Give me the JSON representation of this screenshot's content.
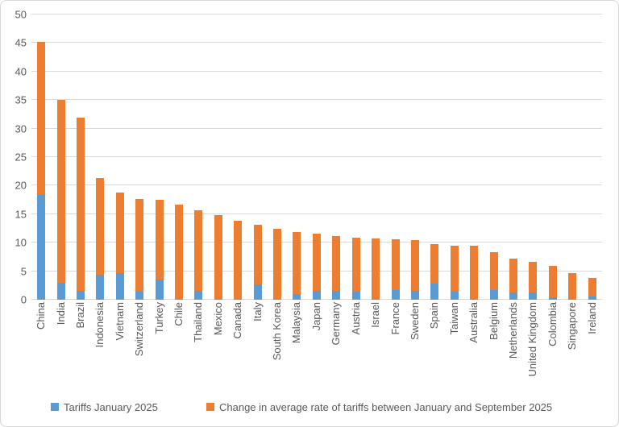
{
  "colors": {
    "jan": "#5B9BD5",
    "change": "#ED7D31",
    "grid": "#D9D9D9",
    "text": "#595959",
    "border": "#D7D7D7"
  },
  "legend": [
    {
      "label": "Tariffs January 2025",
      "color": "#5B9BD5"
    },
    {
      "label": "Change in average rate of tariffs between January and September 2025",
      "color": "#ED7D31"
    }
  ],
  "chart_data": {
    "type": "bar",
    "stacked": true,
    "title": "",
    "xlabel": "",
    "ylabel": "",
    "ylim": [
      0,
      50
    ],
    "y_ticks": [
      0,
      5,
      10,
      15,
      20,
      25,
      30,
      35,
      40,
      45,
      50
    ],
    "grid": "horizontal",
    "legend_position": "bottom",
    "categories": [
      "China",
      "India",
      "Brazil",
      "Indonesia",
      "Vietnam",
      "Switzerland",
      "Turkey",
      "Chile",
      "Thailand",
      "Mexico",
      "Canada",
      "Italy",
      "South Korea",
      "Malaysia",
      "Japan",
      "Germany",
      "Austria",
      "Israel",
      "France",
      "Sweden",
      "Spain",
      "Taiwan",
      "Australia",
      "Belgium",
      "Netherlands",
      "United Kingdom",
      "Colombia",
      "Singapore",
      "Ireland"
    ],
    "series": [
      {
        "name": "Tariffs January 2025",
        "values": [
          18.3,
          3.0,
          1.6,
          4.4,
          4.6,
          1.4,
          3.6,
          0.1,
          1.5,
          0.1,
          0.1,
          2.7,
          0.1,
          1.0,
          1.6,
          1.6,
          1.4,
          0.1,
          1.7,
          1.5,
          2.8,
          1.4,
          0.1,
          1.7,
          1.3,
          1.3,
          0.4,
          0.1,
          0.5
        ]
      },
      {
        "name": "Change in average rate of tariffs between January and September 2025",
        "values": [
          26.9,
          32.1,
          30.3,
          17.0,
          14.2,
          16.3,
          13.9,
          16.6,
          14.2,
          14.8,
          13.7,
          10.5,
          12.4,
          10.9,
          10.0,
          9.5,
          9.5,
          10.7,
          8.9,
          8.9,
          6.9,
          8.1,
          9.3,
          6.7,
          5.9,
          5.4,
          5.6,
          4.5,
          3.3
        ]
      }
    ],
    "totals": [
      45.2,
      35.1,
      31.9,
      21.4,
      18.8,
      17.7,
      17.5,
      16.7,
      15.7,
      14.9,
      13.8,
      13.2,
      12.5,
      11.9,
      11.6,
      11.1,
      10.9,
      10.8,
      10.6,
      10.4,
      9.7,
      9.5,
      9.4,
      8.4,
      7.2,
      6.7,
      6.0,
      4.6,
      3.8
    ]
  }
}
